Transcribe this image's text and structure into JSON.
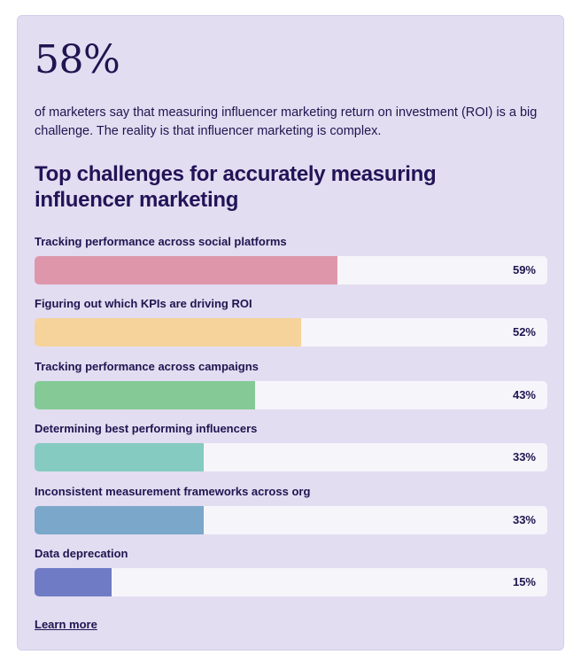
{
  "stat": {
    "value": "58%"
  },
  "description": "of marketers say that measuring influencer marketing return on investment (ROI) is a big challenge. The reality is that influencer marketing is complex.",
  "chart_data": {
    "type": "bar",
    "title": "Top challenges for accurately measuring influencer marketing",
    "orientation": "horizontal",
    "xlim": [
      0,
      100
    ],
    "categories": [
      "Tracking performance across social platforms",
      "Figuring out which KPIs are driving ROI",
      "Tracking performance across campaigns",
      "Determining best performing influencers",
      "Inconsistent measurement frameworks across org",
      "Data deprecation"
    ],
    "values": [
      59,
      52,
      43,
      33,
      33,
      15
    ],
    "value_labels": [
      "59%",
      "52%",
      "43%",
      "33%",
      "33%",
      "15%"
    ],
    "colors": [
      "#de97aa",
      "#f6d39a",
      "#85ca96",
      "#86cbc1",
      "#7ba7cb",
      "#6f7bc5"
    ]
  },
  "link": {
    "label": "Learn more"
  }
}
